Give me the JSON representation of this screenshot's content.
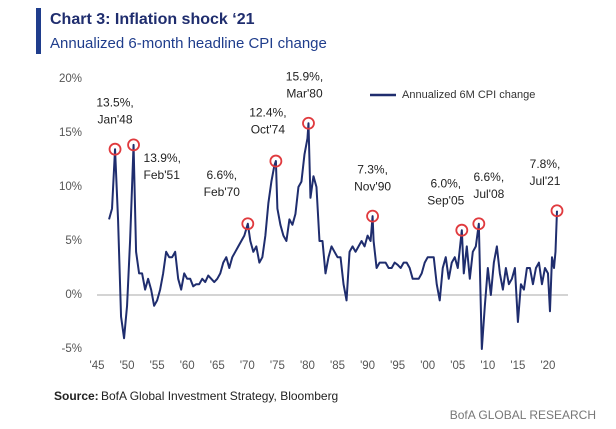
{
  "chart_data": {
    "type": "line",
    "title": "Chart 3: Inflation shock ‘21",
    "subtitle": "Annualized 6-month headline CPI change",
    "source_label": "Source:",
    "source": "BofA Global Investment Strategy, Bloomberg",
    "footer": "BofA GLOBAL RESEARCH",
    "xlim": [
      1945,
      2022
    ],
    "ylim": [
      -5,
      20
    ],
    "xticks": [
      {
        "value": 1945,
        "label": "'45"
      },
      {
        "value": 1950,
        "label": "'50"
      },
      {
        "value": 1955,
        "label": "'55"
      },
      {
        "value": 1960,
        "label": "'60"
      },
      {
        "value": 1965,
        "label": "'65"
      },
      {
        "value": 1970,
        "label": "'70"
      },
      {
        "value": 1975,
        "label": "'75"
      },
      {
        "value": 1980,
        "label": "'80"
      },
      {
        "value": 1985,
        "label": "'85"
      },
      {
        "value": 1990,
        "label": "'90"
      },
      {
        "value": 1995,
        "label": "'95"
      },
      {
        "value": 2000,
        "label": "'00"
      },
      {
        "value": 2005,
        "label": "'05"
      },
      {
        "value": 2010,
        "label": "'10"
      },
      {
        "value": 2015,
        "label": "'15"
      },
      {
        "value": 2020,
        "label": "'20"
      }
    ],
    "yticks": [
      {
        "value": -5,
        "label": "-5%"
      },
      {
        "value": 0,
        "label": "0%"
      },
      {
        "value": 5,
        "label": "5%"
      },
      {
        "value": 10,
        "label": "10%"
      },
      {
        "value": 15,
        "label": "15%"
      },
      {
        "value": 20,
        "label": "20%"
      }
    ],
    "legend": "top-right",
    "x": [
      1947.0,
      1947.5,
      1948.0,
      1948.5,
      1949.0,
      1949.5,
      1950.0,
      1950.5,
      1951.08,
      1951.5,
      1952.0,
      1952.5,
      1953.0,
      1953.5,
      1954.0,
      1954.5,
      1955.0,
      1955.5,
      1956.0,
      1956.5,
      1957.0,
      1957.5,
      1958.0,
      1958.5,
      1959.0,
      1959.5,
      1960.0,
      1960.5,
      1961.0,
      1961.5,
      1962.0,
      1962.5,
      1963.0,
      1963.5,
      1964.0,
      1964.5,
      1965.0,
      1965.5,
      1966.0,
      1966.5,
      1967.0,
      1967.5,
      1968.0,
      1968.5,
      1969.0,
      1969.5,
      1970.08,
      1970.5,
      1971.0,
      1971.5,
      1972.0,
      1972.5,
      1973.0,
      1973.5,
      1974.0,
      1974.5,
      1974.75,
      1975.0,
      1975.5,
      1976.0,
      1976.5,
      1977.0,
      1977.5,
      1978.0,
      1978.5,
      1979.0,
      1979.5,
      1980.0,
      1980.17,
      1980.5,
      1981.0,
      1981.5,
      1982.0,
      1982.5,
      1983.0,
      1983.5,
      1984.0,
      1984.5,
      1985.0,
      1985.5,
      1986.0,
      1986.5,
      1987.0,
      1987.5,
      1988.0,
      1988.5,
      1989.0,
      1989.5,
      1990.0,
      1990.5,
      1990.83,
      1991.0,
      1991.5,
      1992.0,
      1992.5,
      1993.0,
      1993.5,
      1994.0,
      1994.5,
      1995.0,
      1995.5,
      1996.0,
      1996.5,
      1997.0,
      1997.5,
      1998.0,
      1998.5,
      1999.0,
      1999.5,
      2000.0,
      2000.5,
      2001.0,
      2001.5,
      2002.0,
      2002.5,
      2003.0,
      2003.5,
      2004.0,
      2004.5,
      2005.0,
      2005.67,
      2006.0,
      2006.5,
      2007.0,
      2007.5,
      2008.0,
      2008.5,
      2009.0,
      2009.5,
      2010.0,
      2010.5,
      2011.0,
      2011.5,
      2012.0,
      2012.5,
      2013.0,
      2013.5,
      2014.0,
      2014.5,
      2015.0,
      2015.5,
      2016.0,
      2016.5,
      2017.0,
      2017.5,
      2018.0,
      2018.5,
      2019.0,
      2019.5,
      2020.0,
      2020.33,
      2020.67,
      2021.0,
      2021.25,
      2021.5
    ],
    "series": [
      {
        "name": "Annualized 6M CPI change",
        "color": "#1f2d6e",
        "values": [
          7,
          8,
          13.5,
          7,
          -2,
          -4,
          -1,
          5,
          13.9,
          4,
          2,
          2,
          0.5,
          1.5,
          0.5,
          -1,
          -0.5,
          0.5,
          2,
          4,
          3.5,
          3.5,
          4,
          1.5,
          0.5,
          2,
          1.5,
          1.5,
          0.8,
          1,
          1,
          1.5,
          1.2,
          1.8,
          1.5,
          1.2,
          1.5,
          2,
          3,
          3.5,
          2.5,
          3.5,
          4,
          4.5,
          5,
          5.5,
          6.6,
          5,
          4,
          4.5,
          3,
          3.5,
          5.5,
          8.5,
          10.5,
          12,
          12.4,
          8,
          6.5,
          5.5,
          5,
          7,
          6.5,
          7.5,
          10,
          10.5,
          13,
          14.5,
          15.9,
          9,
          11,
          10,
          5,
          5,
          2,
          3.5,
          4.5,
          4,
          3.5,
          3.5,
          1,
          -0.5,
          4,
          4.5,
          4,
          4.5,
          5,
          4.5,
          5.5,
          5,
          7.3,
          5,
          2.5,
          3,
          3,
          3,
          2.5,
          2.5,
          3,
          2.8,
          2.5,
          3,
          3,
          2.5,
          1.5,
          1.5,
          1.5,
          2,
          3,
          3.5,
          3.5,
          3.5,
          1,
          -0.5,
          2.5,
          3.5,
          1.5,
          3,
          3.5,
          2.5,
          6.0,
          2,
          4.5,
          1.5,
          4,
          4.5,
          6.6,
          -5,
          -1,
          2.5,
          0,
          3,
          4.5,
          2,
          0.5,
          2.5,
          1,
          1.5,
          2.5,
          -2.5,
          1,
          0.5,
          2.5,
          2.5,
          1,
          2.5,
          3,
          1,
          2.5,
          2,
          -1.5,
          3.5,
          2.5,
          4,
          7.8
        ]
      }
    ],
    "annotation_color": "#e03a3e",
    "annotations": [
      {
        "x": 1948.0,
        "value": 13.5,
        "label": "13.5%,",
        "date": "Jan'48"
      },
      {
        "x": 1951.08,
        "value": 13.9,
        "label": "13.9%,",
        "date": "Feb'51"
      },
      {
        "x": 1970.08,
        "value": 6.6,
        "label": "6.6%,",
        "date": "Feb'70"
      },
      {
        "x": 1974.75,
        "value": 12.4,
        "label": "12.4%,",
        "date": "Oct'74"
      },
      {
        "x": 1980.17,
        "value": 15.9,
        "label": "15.9%,",
        "date": "Mar'80"
      },
      {
        "x": 1990.83,
        "value": 7.3,
        "label": "7.3%,",
        "date": "Nov'90"
      },
      {
        "x": 2005.67,
        "value": 6.0,
        "label": "6.0%,",
        "date": "Sep'05"
      },
      {
        "x": 2008.5,
        "value": 6.6,
        "label": "6.6%,",
        "date": "Jul'08"
      },
      {
        "x": 2021.5,
        "value": 7.8,
        "label": "7.8%,",
        "date": "Jul'21"
      }
    ]
  }
}
